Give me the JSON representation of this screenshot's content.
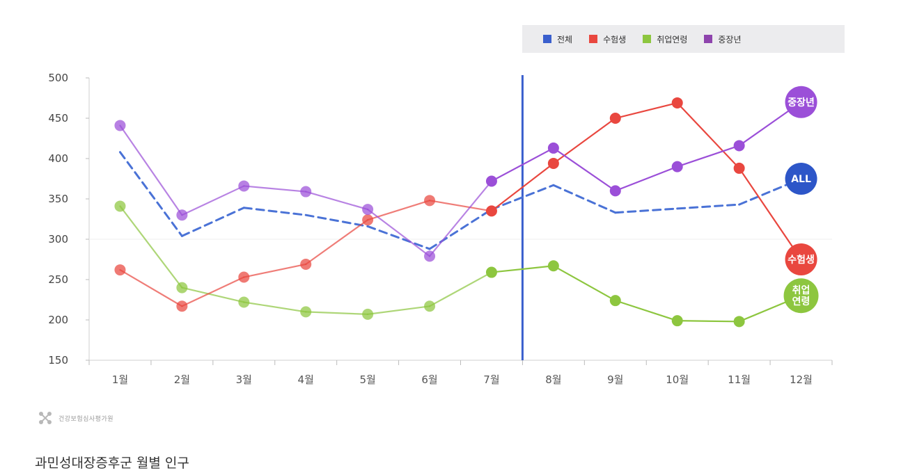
{
  "legend": {
    "items": [
      {
        "label": "전체",
        "color": "#3a5fcd"
      },
      {
        "label": "수험생",
        "color": "#e9473f"
      },
      {
        "label": "취업연령",
        "color": "#8dc63f"
      },
      {
        "label": "중장년",
        "color": "#8e44ad"
      }
    ]
  },
  "chart_data": {
    "type": "line",
    "categories": [
      "1월",
      "2월",
      "3월",
      "4월",
      "5월",
      "6월",
      "7월",
      "8월",
      "9월",
      "10월",
      "11월",
      "12월"
    ],
    "ylim": [
      150,
      500
    ],
    "yticks": [
      150,
      200,
      250,
      300,
      350,
      400,
      450,
      500
    ],
    "grid": false,
    "legend_position": "top-right",
    "divider_after": "7월",
    "series": [
      {
        "name": "전체",
        "color": "#4a72d6",
        "dashed": true,
        "end_label": "ALL",
        "values": [
          408,
          304,
          339,
          330,
          316,
          288,
          337,
          367,
          333,
          338,
          343,
          375
        ]
      },
      {
        "name": "수험생",
        "color": "#e9473f",
        "dashed": false,
        "end_label": "수험생",
        "values": [
          262,
          217,
          253,
          269,
          324,
          348,
          335,
          394,
          450,
          469,
          388,
          275
        ]
      },
      {
        "name": "취업연령",
        "color": "#8dc63f",
        "dashed": false,
        "end_label": "취업\n연령",
        "values": [
          341,
          240,
          222,
          210,
          207,
          217,
          259,
          267,
          224,
          199,
          198,
          230
        ]
      },
      {
        "name": "중장년",
        "color": "#9b4fd8",
        "dashed": false,
        "end_label": "중장년",
        "values": [
          441,
          330,
          366,
          359,
          337,
          279,
          372,
          413,
          360,
          390,
          416,
          470
        ]
      }
    ]
  },
  "source": {
    "text": "건강보험심사평가원"
  },
  "caption": "과민성대장증후군 월별 인구"
}
